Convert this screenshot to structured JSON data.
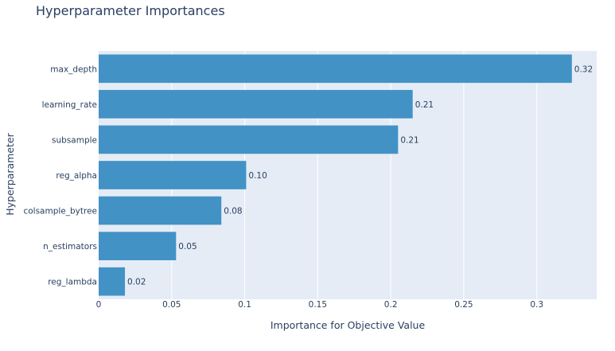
{
  "chart_data": {
    "type": "bar",
    "orientation": "horizontal",
    "title": "Hyperparameter Importances",
    "xlabel": "Importance for Objective Value",
    "ylabel": "Hyperparameter",
    "categories": [
      "max_depth",
      "learning_rate",
      "subsample",
      "reg_alpha",
      "colsample_bytree",
      "n_estimators",
      "reg_lambda"
    ],
    "values": [
      0.324,
      0.215,
      0.205,
      0.101,
      0.084,
      0.053,
      0.018
    ],
    "data_labels": [
      "0.32",
      "0.21",
      "0.21",
      "0.10",
      "0.08",
      "0.05",
      "0.02"
    ],
    "xlim": [
      0,
      0.341
    ],
    "xticks": [
      0,
      0.05,
      0.1,
      0.15,
      0.2,
      0.25,
      0.3
    ],
    "xtick_labels": [
      "0",
      "0.05",
      "0.1",
      "0.15",
      "0.2",
      "0.25",
      "0.3"
    ],
    "grid": true,
    "colors": {
      "bar": "#4292c6",
      "plot_bg": "#e5ecf6",
      "grid": "#ffffff",
      "text": "#2a3f5f"
    }
  }
}
